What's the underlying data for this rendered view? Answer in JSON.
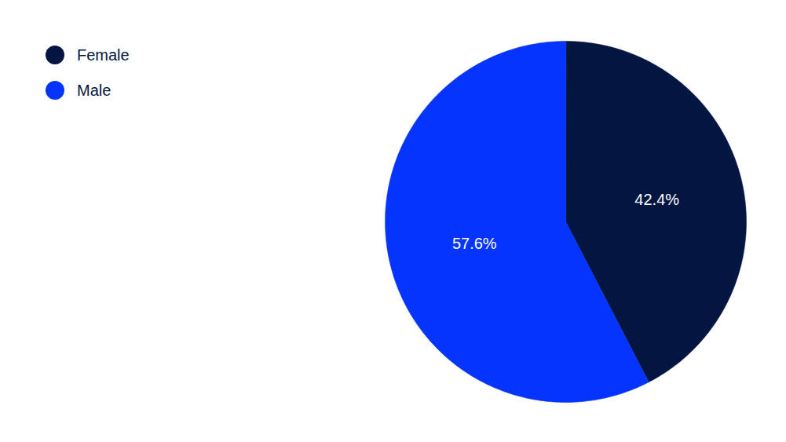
{
  "chart_data": {
    "type": "pie",
    "categories": [
      "Female",
      "Male"
    ],
    "values": [
      42.4,
      57.6
    ],
    "value_labels": [
      "42.4%",
      "57.6%"
    ],
    "colors": [
      "#031642",
      "#0534ff"
    ],
    "data_labels": true,
    "legend": "top-left"
  }
}
